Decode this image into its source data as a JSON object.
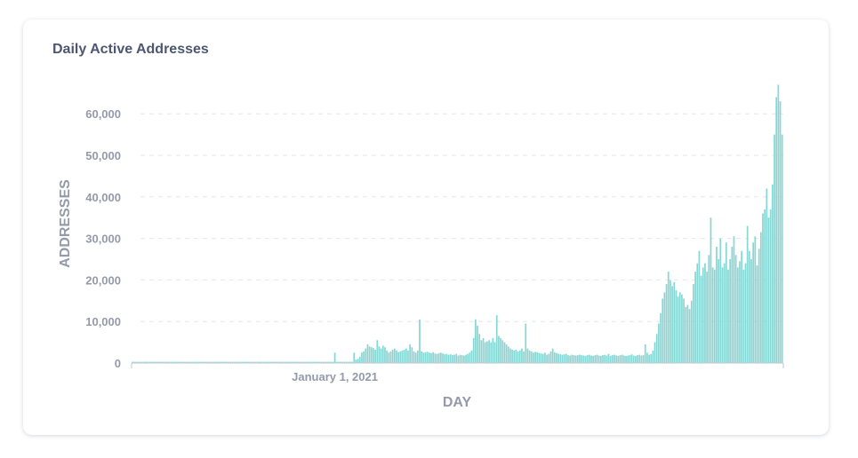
{
  "card": {
    "title": "Daily Active Addresses"
  },
  "chart_data": {
    "type": "bar",
    "title": "Daily Active Addresses",
    "xlabel": "DAY",
    "ylabel": "ADDRESSES",
    "ylim": [
      0,
      70000
    ],
    "yticks": [
      "0",
      "10,000",
      "20,000",
      "30,000",
      "40,000",
      "50,000",
      "60,000"
    ],
    "xticks": [
      "January 1, 2021"
    ],
    "grid": true,
    "bar_color": "#88d7d4",
    "series": [
      {
        "values": [
          300,
          300,
          300,
          300,
          300,
          300,
          300,
          300,
          300,
          300,
          300,
          300,
          300,
          300,
          300,
          300,
          300,
          300,
          300,
          300,
          300,
          300,
          300,
          300,
          300,
          300,
          300,
          300,
          300,
          300,
          300,
          300,
          300,
          300,
          300,
          300,
          300,
          300,
          300,
          300,
          300,
          300,
          300,
          300,
          300,
          300,
          300,
          300,
          300,
          300,
          300,
          300,
          300,
          300,
          300,
          300,
          300,
          300,
          300,
          300,
          300,
          300,
          300,
          300,
          300,
          300,
          300,
          300,
          300,
          300,
          300,
          300,
          300,
          300,
          300,
          300,
          300,
          300,
          300,
          300,
          300,
          300,
          300,
          300,
          300,
          300,
          300,
          300,
          300,
          300,
          300,
          300,
          300,
          300,
          300,
          300,
          300,
          300,
          300,
          300,
          300,
          300,
          300,
          300,
          300,
          2500,
          300,
          300,
          300,
          300,
          300,
          300,
          300,
          300,
          300,
          2500,
          800,
          1000,
          1500,
          2500,
          2800,
          3500,
          4500,
          4000,
          3800,
          3600,
          3200,
          5500,
          4000,
          3500,
          4200,
          3800,
          3000,
          2500,
          2800,
          3200,
          3500,
          3000,
          2600,
          2800,
          3000,
          3200,
          3500,
          3000,
          4500,
          3800,
          2800,
          2500,
          3000,
          10500,
          2800,
          2500,
          2600,
          2700,
          2500,
          2400,
          2600,
          2300,
          2200,
          2400,
          2500,
          2300,
          2100,
          2200,
          2000,
          2100,
          1900,
          2000,
          2200,
          1800,
          2000,
          1900,
          1800,
          2000,
          2200,
          2500,
          3000,
          6000,
          10500,
          9000,
          7000,
          5500,
          6000,
          5000,
          5200,
          5500,
          5000,
          6000,
          5000,
          11500,
          6500,
          6000,
          5500,
          5000,
          4500,
          4000,
          3500,
          3200,
          3000,
          3200,
          2800,
          3000,
          3500,
          2800,
          9500,
          3500,
          3000,
          2800,
          2500,
          2700,
          2600,
          2400,
          2300,
          2200,
          2500,
          2000,
          2200,
          2800,
          3500,
          2600,
          2400,
          2200,
          2100,
          2000,
          2100,
          2200,
          1900,
          1800,
          2000,
          1900,
          1800,
          1900,
          2000,
          1900,
          1800,
          1700,
          1900,
          2000,
          1800,
          1700,
          1900,
          2000,
          1800,
          1700,
          1900,
          2000,
          1800,
          2200,
          1700,
          1900,
          2000,
          1800,
          1700,
          1900,
          2000,
          1800,
          1700,
          1800,
          1900,
          2100,
          1800,
          1700,
          1900,
          2000,
          1800,
          1900,
          4500,
          2500,
          2000,
          2200,
          3000,
          5000,
          7000,
          9500,
          12000,
          15500,
          17000,
          19000,
          22000,
          20000,
          18500,
          19500,
          17500,
          16000,
          17000,
          16500,
          15500,
          13500,
          14000,
          13000,
          15000,
          19000,
          22000,
          24000,
          27000,
          21000,
          23000,
          24000,
          22000,
          26000,
          35000,
          23000,
          22500,
          28000,
          25000,
          30000,
          23000,
          24000,
          29000,
          22500,
          25000,
          28000,
          30500,
          26000,
          23000,
          24500,
          27000,
          22500,
          24000,
          33000,
          27000,
          25000,
          29000,
          30500,
          23500,
          27500,
          31500,
          36000,
          37000,
          42000,
          35000,
          37000,
          43000,
          55000,
          64000,
          67000,
          63000,
          55000
        ]
      }
    ]
  }
}
